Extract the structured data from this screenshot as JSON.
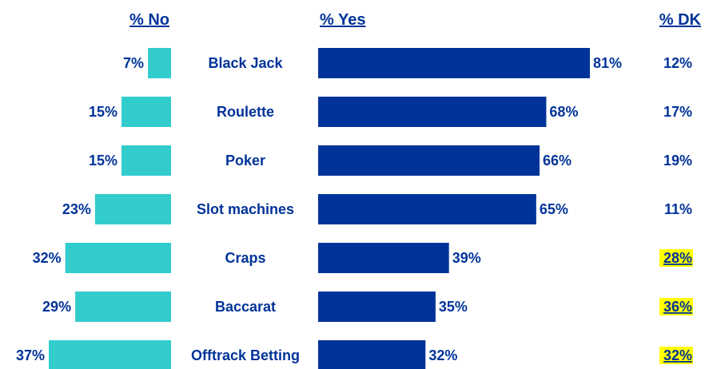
{
  "chart_data": {
    "type": "bar",
    "headers": {
      "no": "% No",
      "yes": "% Yes",
      "dk": "% DK"
    },
    "categories": [
      "Black Jack",
      "Roulette",
      "Poker",
      "Slot machines",
      "Craps",
      "Baccarat",
      "Offtrack Betting"
    ],
    "series": [
      {
        "name": "% No",
        "values": [
          7,
          15,
          15,
          23,
          32,
          29,
          37
        ],
        "labels": [
          "7%",
          "15%",
          "15%",
          "23%",
          "32%",
          "29%",
          "37%"
        ]
      },
      {
        "name": "% Yes",
        "values": [
          81,
          68,
          66,
          65,
          39,
          35,
          32
        ],
        "labels": [
          "81%",
          "68%",
          "66%",
          "65%",
          "39%",
          "35%",
          "32%"
        ]
      },
      {
        "name": "% DK",
        "values": [
          12,
          17,
          19,
          11,
          28,
          36,
          32
        ],
        "labels": [
          "12%",
          "17%",
          "19%",
          "11%",
          "28%",
          "36%",
          "32%"
        ]
      }
    ],
    "dk_highlighted": [
      false,
      false,
      false,
      false,
      true,
      true,
      true
    ],
    "colors": {
      "no_bar": "#33CCCC",
      "yes_bar": "#003399",
      "text": "#003399",
      "highlight": "#FFFF00"
    }
  }
}
